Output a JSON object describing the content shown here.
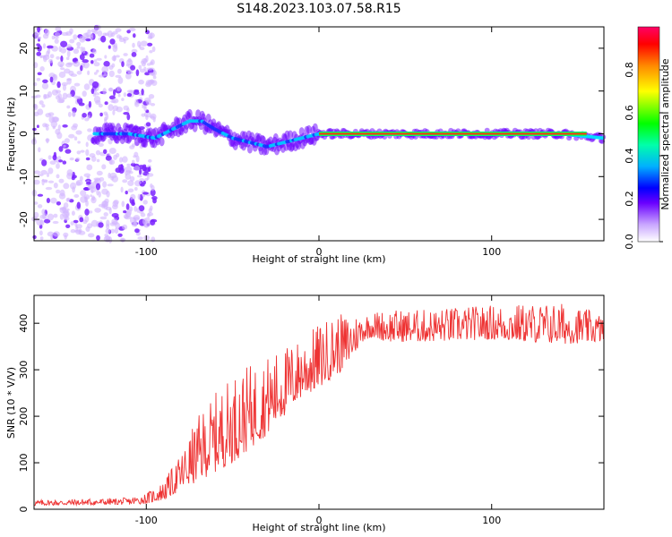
{
  "title": "S148.2023.103.07.58.R15",
  "chart_data": [
    {
      "type": "heatmap",
      "panel": "spectrogram",
      "xlabel": "Height of straight line (km)",
      "ylabel": "Frequency (Hz)",
      "xlim": [
        -165,
        165
      ],
      "ylim": [
        -25,
        25
      ],
      "xticks": [
        -100,
        0,
        100
      ],
      "yticks": [
        -20,
        -10,
        0,
        10,
        20
      ],
      "colorbar": {
        "label": "Normalized spectral amplitude",
        "range": [
          0,
          1
        ],
        "ticks": [
          0.0,
          0.2,
          0.4,
          0.6,
          0.8
        ]
      },
      "ridge": {
        "x": [
          -130,
          -110,
          -95,
          -85,
          -75,
          -68,
          -60,
          -50,
          -40,
          -30,
          -20,
          -10,
          0,
          10,
          30,
          60,
          100,
          140,
          165
        ],
        "y": [
          0,
          0,
          -1,
          1,
          3,
          3,
          1,
          -1,
          -2,
          -3,
          -2,
          -1,
          0,
          0,
          0,
          0,
          0,
          0,
          -1
        ]
      },
      "noise_region": [
        -165,
        -95
      ]
    },
    {
      "type": "line",
      "panel": "snr",
      "xlabel": "Height of straight line (km)",
      "ylabel": "SNR (10 * V/V)",
      "xlim": [
        -165,
        165
      ],
      "ylim": [
        0,
        460
      ],
      "xticks": [
        -100,
        0,
        100
      ],
      "yticks": [
        0,
        100,
        200,
        300,
        400
      ],
      "color": "#ee3333",
      "envelope": {
        "x": [
          -165,
          -110,
          -100,
          -90,
          -80,
          -70,
          -60,
          -50,
          -40,
          -30,
          -20,
          -10,
          0,
          10,
          15,
          20,
          25,
          30,
          40,
          60,
          100,
          140,
          165
        ],
        "lower": [
          8,
          10,
          12,
          20,
          40,
          60,
          80,
          100,
          130,
          160,
          200,
          240,
          260,
          290,
          300,
          330,
          360,
          370,
          360,
          360,
          365,
          355,
          360
        ],
        "upper": [
          20,
          25,
          35,
          60,
          120,
          200,
          250,
          290,
          310,
          330,
          350,
          370,
          400,
          420,
          420,
          420,
          420,
          425,
          430,
          430,
          440,
          445,
          420
        ]
      }
    }
  ]
}
